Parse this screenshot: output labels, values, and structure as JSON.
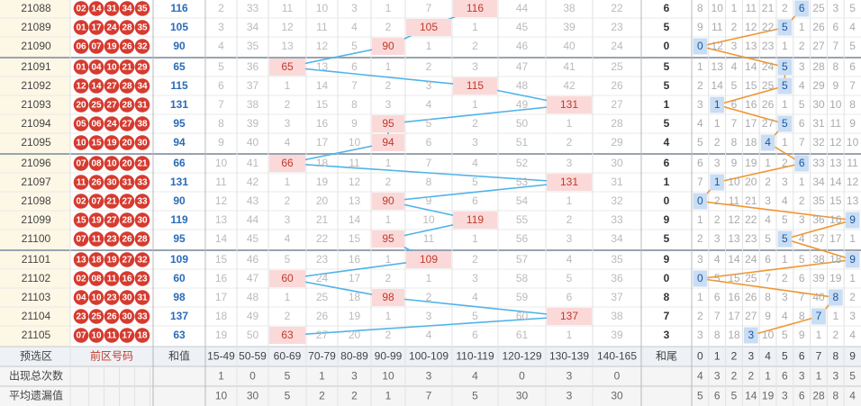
{
  "rows": [
    {
      "period": "21088",
      "balls": [
        "02",
        "14",
        "31",
        "34",
        "35"
      ],
      "sum": 116,
      "ranges": [
        2,
        33,
        11,
        10,
        3,
        1,
        7,
        116,
        44,
        38,
        22
      ],
      "tail": 6,
      "digits": [
        8,
        10,
        1,
        11,
        21,
        2,
        6,
        25,
        3,
        5
      ]
    },
    {
      "period": "21089",
      "balls": [
        "01",
        "17",
        "24",
        "28",
        "35"
      ],
      "sum": 105,
      "ranges": [
        3,
        34,
        12,
        11,
        4,
        2,
        105,
        1,
        45,
        39,
        23
      ],
      "tail": 5,
      "digits": [
        9,
        11,
        2,
        12,
        22,
        5,
        1,
        26,
        6,
        4
      ]
    },
    {
      "period": "21090",
      "balls": [
        "06",
        "07",
        "19",
        "26",
        "32"
      ],
      "sum": 90,
      "ranges": [
        4,
        35,
        13,
        12,
        5,
        90,
        1,
        2,
        46,
        40,
        24
      ],
      "tail": 0,
      "digits": [
        0,
        12,
        3,
        13,
        23,
        1,
        2,
        27,
        7,
        5
      ]
    },
    {
      "period": "21091",
      "balls": [
        "01",
        "04",
        "10",
        "21",
        "29"
      ],
      "sum": 65,
      "ranges": [
        5,
        36,
        65,
        13,
        6,
        1,
        2,
        3,
        47,
        41,
        25
      ],
      "tail": 5,
      "digits": [
        1,
        13,
        4,
        14,
        24,
        5,
        3,
        28,
        8,
        6
      ]
    },
    {
      "period": "21092",
      "balls": [
        "12",
        "14",
        "27",
        "28",
        "34"
      ],
      "sum": 115,
      "ranges": [
        6,
        37,
        1,
        14,
        7,
        2,
        3,
        115,
        48,
        42,
        26
      ],
      "tail": 5,
      "digits": [
        2,
        14,
        5,
        15,
        25,
        5,
        4,
        29,
        9,
        7
      ]
    },
    {
      "period": "21093",
      "balls": [
        "20",
        "25",
        "27",
        "28",
        "31"
      ],
      "sum": 131,
      "ranges": [
        7,
        38,
        2,
        15,
        8,
        3,
        4,
        1,
        49,
        131,
        27
      ],
      "tail": 1,
      "digits": [
        3,
        1,
        6,
        16,
        26,
        1,
        5,
        30,
        10,
        8
      ]
    },
    {
      "period": "21094",
      "balls": [
        "05",
        "06",
        "24",
        "27",
        "38"
      ],
      "sum": 95,
      "ranges": [
        8,
        39,
        3,
        16,
        9,
        95,
        5,
        2,
        50,
        1,
        28
      ],
      "tail": 5,
      "digits": [
        4,
        1,
        7,
        17,
        27,
        5,
        6,
        31,
        11,
        9
      ]
    },
    {
      "period": "21095",
      "balls": [
        "10",
        "15",
        "19",
        "20",
        "30"
      ],
      "sum": 94,
      "ranges": [
        9,
        40,
        4,
        17,
        10,
        94,
        6,
        3,
        51,
        2,
        29
      ],
      "tail": 4,
      "digits": [
        5,
        2,
        8,
        18,
        4,
        1,
        7,
        32,
        12,
        10
      ]
    },
    {
      "period": "21096",
      "balls": [
        "07",
        "08",
        "10",
        "20",
        "21"
      ],
      "sum": 66,
      "ranges": [
        10,
        41,
        66,
        18,
        11,
        1,
        7,
        4,
        52,
        3,
        30
      ],
      "tail": 6,
      "digits": [
        6,
        3,
        9,
        19,
        1,
        2,
        6,
        33,
        13,
        11
      ]
    },
    {
      "period": "21097",
      "balls": [
        "11",
        "26",
        "30",
        "31",
        "33"
      ],
      "sum": 131,
      "ranges": [
        11,
        42,
        1,
        19,
        12,
        2,
        8,
        5,
        53,
        131,
        31
      ],
      "tail": 1,
      "digits": [
        7,
        1,
        10,
        20,
        2,
        3,
        1,
        34,
        14,
        12
      ]
    },
    {
      "period": "21098",
      "balls": [
        "02",
        "07",
        "21",
        "27",
        "33"
      ],
      "sum": 90,
      "ranges": [
        12,
        43,
        2,
        20,
        13,
        90,
        9,
        6,
        54,
        1,
        32
      ],
      "tail": 0,
      "digits": [
        0,
        2,
        11,
        21,
        3,
        4,
        2,
        35,
        15,
        13
      ]
    },
    {
      "period": "21099",
      "balls": [
        "15",
        "19",
        "27",
        "28",
        "30"
      ],
      "sum": 119,
      "ranges": [
        13,
        44,
        3,
        21,
        14,
        1,
        10,
        119,
        55,
        2,
        33
      ],
      "tail": 9,
      "digits": [
        1,
        2,
        12,
        22,
        4,
        5,
        3,
        36,
        16,
        9
      ]
    },
    {
      "period": "21100",
      "balls": [
        "07",
        "11",
        "23",
        "26",
        "28"
      ],
      "sum": 95,
      "ranges": [
        14,
        45,
        4,
        22,
        15,
        95,
        11,
        1,
        56,
        3,
        34
      ],
      "tail": 5,
      "digits": [
        2,
        3,
        13,
        23,
        5,
        5,
        4,
        37,
        17,
        1
      ]
    },
    {
      "period": "21101",
      "balls": [
        "13",
        "18",
        "19",
        "27",
        "32"
      ],
      "sum": 109,
      "ranges": [
        15,
        46,
        5,
        23,
        16,
        1,
        109,
        2,
        57,
        4,
        35
      ],
      "tail": 9,
      "digits": [
        3,
        4,
        14,
        24,
        6,
        1,
        5,
        38,
        18,
        9
      ]
    },
    {
      "period": "21102",
      "balls": [
        "02",
        "08",
        "11",
        "16",
        "23"
      ],
      "sum": 60,
      "ranges": [
        16,
        47,
        60,
        24,
        17,
        2,
        1,
        3,
        58,
        5,
        36
      ],
      "tail": 0,
      "digits": [
        0,
        5,
        15,
        25,
        7,
        2,
        6,
        39,
        19,
        1
      ]
    },
    {
      "period": "21103",
      "balls": [
        "04",
        "10",
        "23",
        "30",
        "31"
      ],
      "sum": 98,
      "ranges": [
        17,
        48,
        1,
        25,
        18,
        98,
        2,
        4,
        59,
        6,
        37
      ],
      "tail": 8,
      "digits": [
        1,
        6,
        16,
        26,
        8,
        3,
        7,
        40,
        8,
        2
      ]
    },
    {
      "period": "21104",
      "balls": [
        "23",
        "25",
        "26",
        "30",
        "33"
      ],
      "sum": 137,
      "ranges": [
        18,
        49,
        2,
        26,
        19,
        1,
        3,
        5,
        60,
        137,
        38
      ],
      "tail": 7,
      "digits": [
        2,
        7,
        17,
        27,
        9,
        4,
        8,
        7,
        1,
        3
      ]
    },
    {
      "period": "21105",
      "balls": [
        "07",
        "10",
        "11",
        "17",
        "18"
      ],
      "sum": 63,
      "ranges": [
        19,
        50,
        63,
        27,
        20,
        2,
        4,
        6,
        61,
        1,
        39
      ],
      "tail": 3,
      "digits": [
        3,
        8,
        18,
        3,
        10,
        5,
        9,
        1,
        2,
        4
      ]
    }
  ],
  "footer": {
    "header": {
      "label": "预选区",
      "balls_label": "前区号码",
      "sum_label": "和值",
      "ranges": [
        "15-49",
        "50-59",
        "60-69",
        "70-79",
        "80-89",
        "90-99",
        "100-109",
        "110-119",
        "120-129",
        "130-139",
        "140-165"
      ],
      "tail_label": "和尾",
      "digits": [
        0,
        1,
        2,
        3,
        4,
        5,
        6,
        7,
        8,
        9
      ]
    },
    "counts": {
      "label": "出现总次数",
      "ranges": [
        1,
        0,
        5,
        1,
        3,
        10,
        3,
        4,
        0,
        3,
        0
      ],
      "digits": [
        4,
        3,
        2,
        2,
        1,
        6,
        3,
        1,
        3,
        5
      ]
    },
    "avg_missing": {
      "label": "平均遗漏值",
      "ranges": [
        10,
        30,
        5,
        2,
        2,
        1,
        7,
        5,
        30,
        3,
        30
      ],
      "digits": [
        5,
        6,
        5,
        14,
        19,
        3,
        6,
        28,
        8,
        4
      ]
    }
  }
}
